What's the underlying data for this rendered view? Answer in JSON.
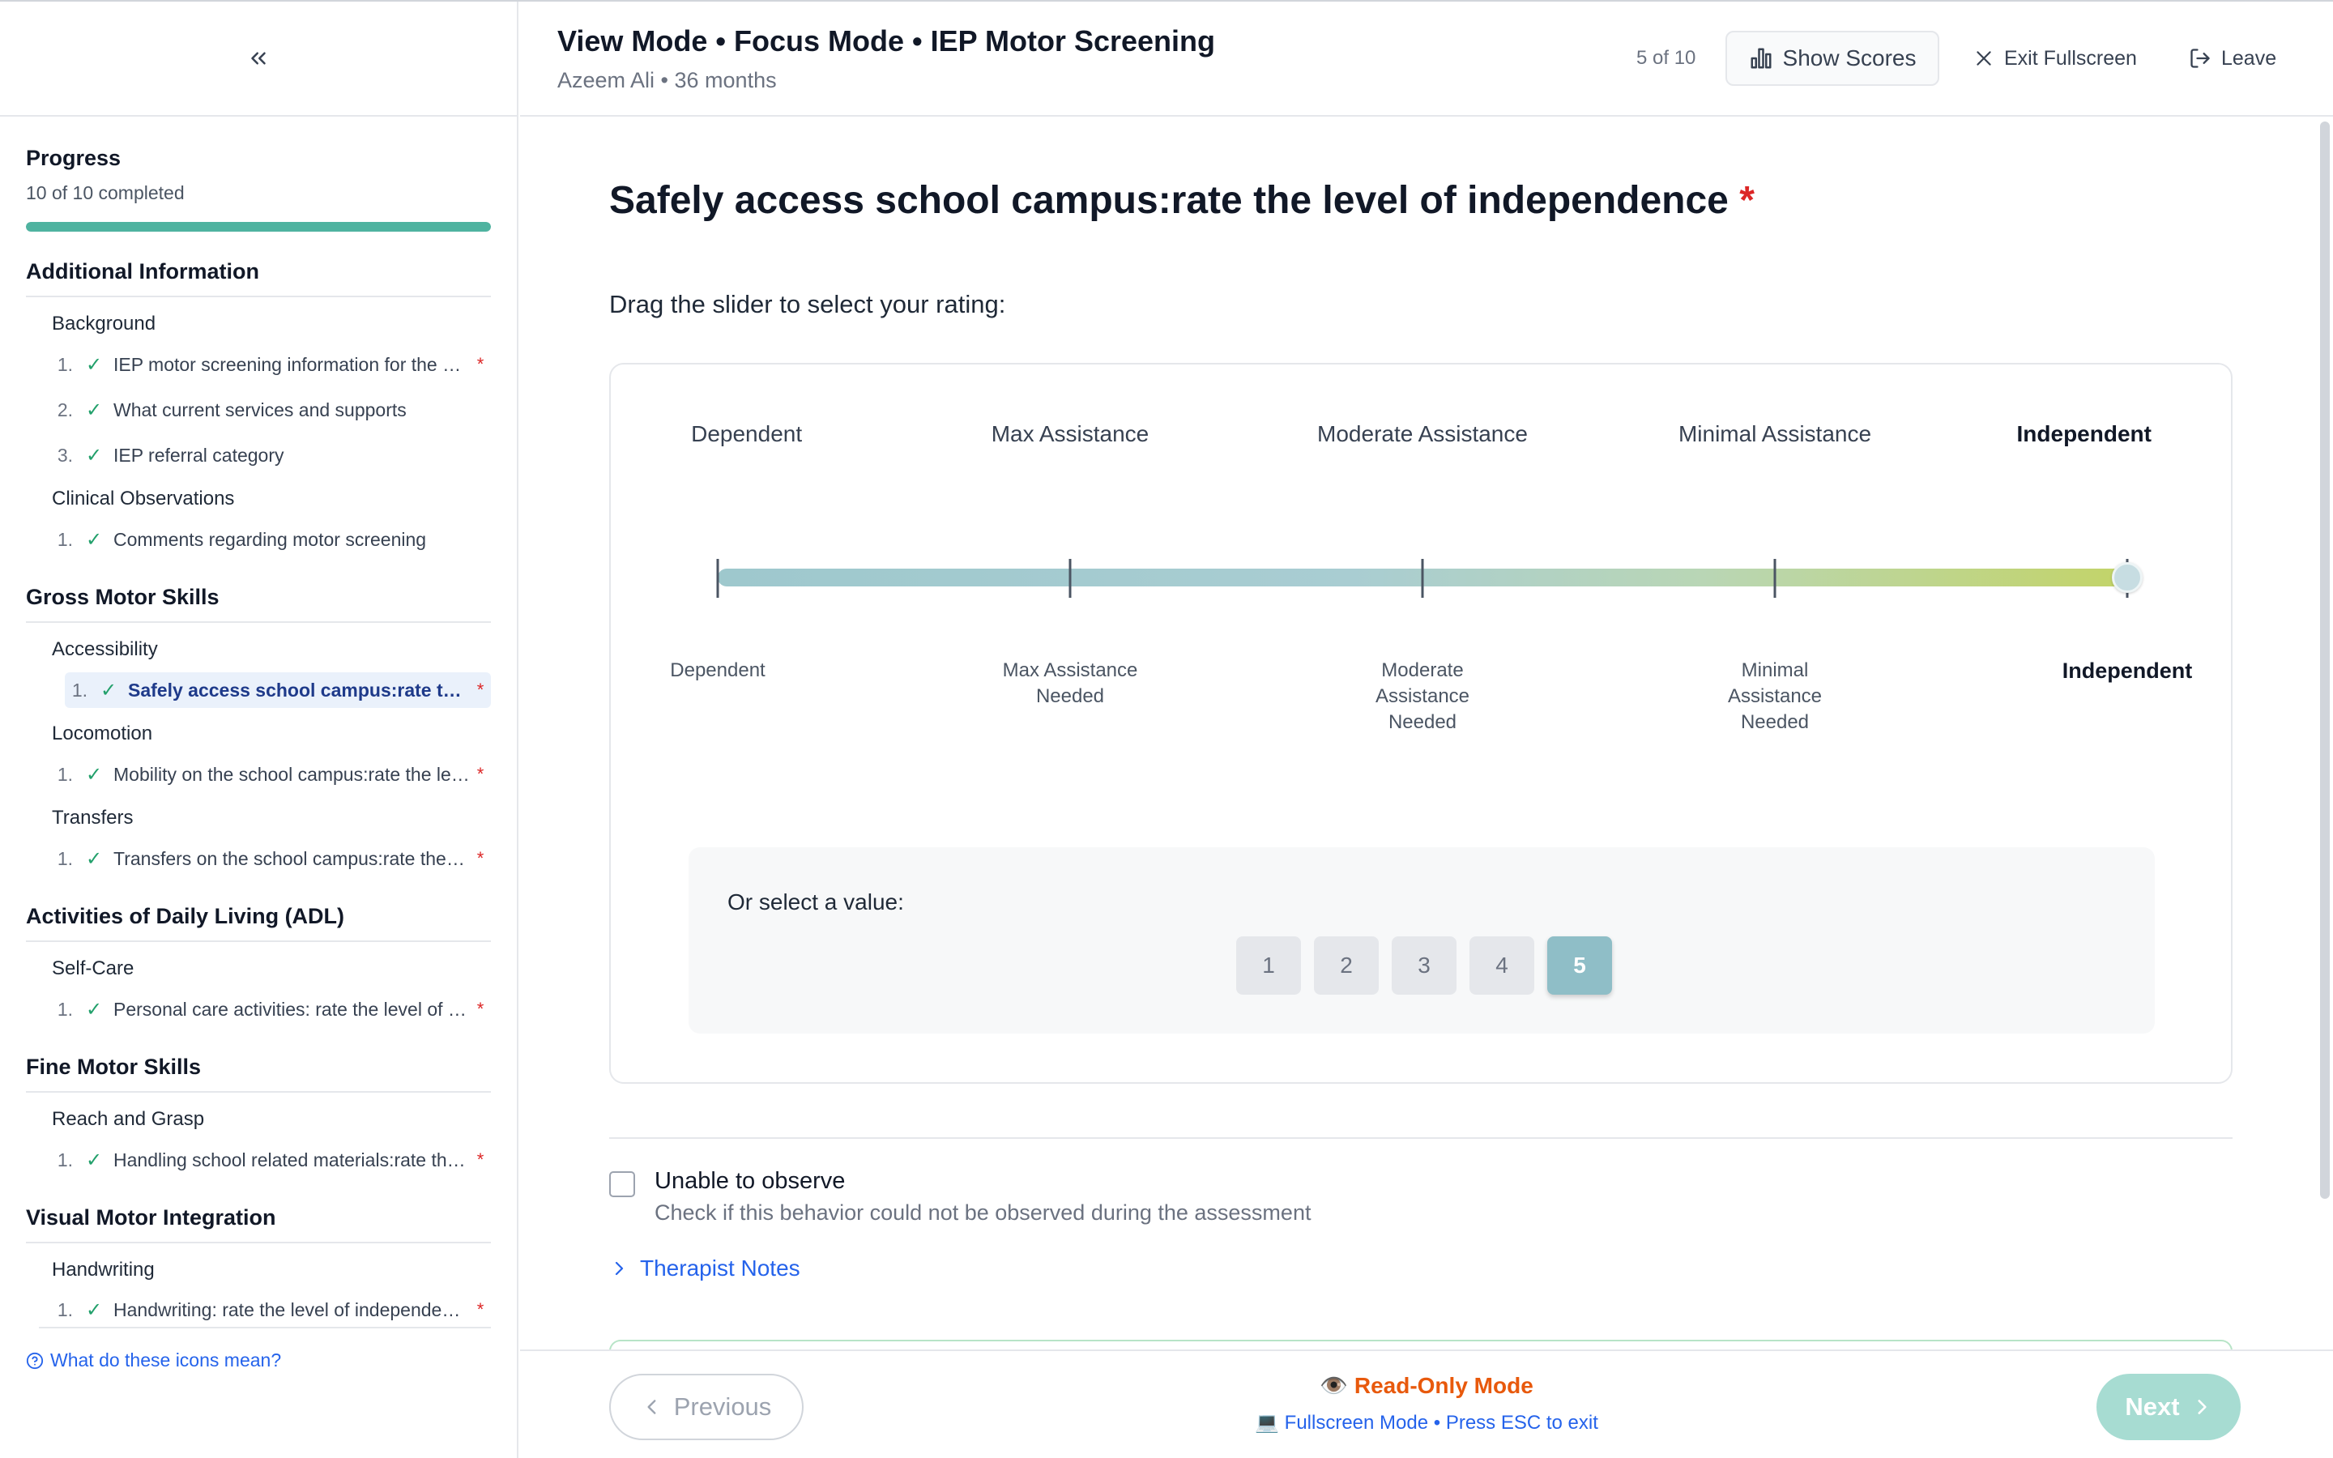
{
  "header": {
    "title": "View Mode • Focus Mode • IEP Motor Screening",
    "subtitle": "Azeem Ali • 36 months",
    "counter": "5 of 10",
    "show_scores_label": "Show Scores",
    "exit_fullscreen_label": "Exit Fullscreen",
    "leave_label": "Leave"
  },
  "sidebar": {
    "progress_title": "Progress",
    "progress_text": "10 of 10 completed",
    "progress_value": 1.0,
    "sections": [
      {
        "title": "Additional Information",
        "groups": [
          {
            "title": "Background",
            "items": [
              {
                "num": "1.",
                "label": "IEP motor screening information for the student",
                "required": true
              },
              {
                "num": "2.",
                "label": "What current services and supports",
                "required": false
              },
              {
                "num": "3.",
                "label": "IEP referral category",
                "required": false
              }
            ]
          },
          {
            "title": "Clinical Observations",
            "items": [
              {
                "num": "1.",
                "label": "Comments regarding motor screening",
                "required": false
              }
            ]
          }
        ]
      },
      {
        "title": "Gross Motor Skills",
        "groups": [
          {
            "title": "Accessibility",
            "items": [
              {
                "num": "1.",
                "label": "Safely access school campus:rate the level of independence",
                "required": true,
                "active": true
              }
            ]
          },
          {
            "title": "Locomotion",
            "items": [
              {
                "num": "1.",
                "label": "Mobility on the school campus:rate the level of independence",
                "required": true
              }
            ]
          },
          {
            "title": "Transfers",
            "items": [
              {
                "num": "1.",
                "label": "Transfers on the school campus:rate the level of independence",
                "required": true
              }
            ]
          }
        ]
      },
      {
        "title": "Activities of Daily Living (ADL)",
        "groups": [
          {
            "title": "Self-Care",
            "items": [
              {
                "num": "1.",
                "label": "Personal care activities: rate the level of independence",
                "required": true
              }
            ]
          }
        ]
      },
      {
        "title": "Fine Motor Skills",
        "groups": [
          {
            "title": "Reach and Grasp",
            "items": [
              {
                "num": "1.",
                "label": "Handling school related materials:rate the level of independence",
                "required": true
              }
            ]
          }
        ]
      },
      {
        "title": "Visual Motor Integration",
        "groups": [
          {
            "title": "Handwriting",
            "items": [
              {
                "num": "1.",
                "label": "Handwriting: rate the level of independence",
                "required": true
              }
            ]
          }
        ]
      }
    ],
    "help_link": "What do these icons mean?"
  },
  "question": {
    "title": "Safely access school campus:rate the level of independence",
    "required_mark": "*",
    "instruction": "Drag the slider to select your rating:",
    "top_labels": [
      "Dependent",
      "Max Assistance",
      "Moderate Assistance",
      "Minimal Assistance",
      "Independent"
    ],
    "bottom_labels": [
      "Dependent",
      "Max Assistance\nNeeded",
      "Moderate\nAssistance\nNeeded",
      "Minimal\nAssistance\nNeeded",
      "Independent"
    ],
    "slider_min": 1,
    "slider_max": 5,
    "slider_value": 5,
    "value_prompt": "Or select a value:",
    "values": [
      "1",
      "2",
      "3",
      "4",
      "5"
    ],
    "selected_value": "5",
    "unable_title": "Unable to observe",
    "unable_desc": "Check if this behavior could not be observed during the assessment",
    "notes_label": "Therapist Notes"
  },
  "footer": {
    "previous_label": "Previous",
    "next_label": "Next",
    "readonly_label": "Read-Only Mode",
    "fullscreen_hint": "Fullscreen Mode • Press ESC to exit"
  },
  "colors": {
    "accent_teal": "#4fb3a0",
    "link_blue": "#2563eb",
    "required_red": "#dc2626",
    "readonly_orange": "#e8590c",
    "selected_value": "#8fbec7"
  }
}
